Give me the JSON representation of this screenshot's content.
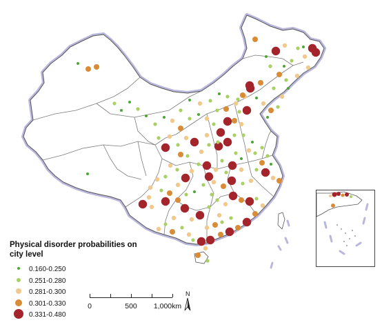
{
  "legend": {
    "title": "Physical disorder probabilities on city level",
    "items": [
      {
        "label": "0.160-0.250",
        "color": "#4aa832"
      },
      {
        "label": "0.251-0.280",
        "color": "#a8d062"
      },
      {
        "label": "0.281-0.300",
        "color": "#f1c98c"
      },
      {
        "label": "0.301-0.330",
        "color": "#d98b35"
      },
      {
        "label": "0.331-0.480",
        "color": "#a3242a"
      }
    ]
  },
  "scale_bar": {
    "labels": [
      "0",
      "500",
      "1,000km"
    ]
  },
  "north_arrow": {
    "label": "N"
  },
  "colors": {
    "border_halo": "#b9b8dc",
    "province_line": "#7a7a7a"
  }
}
